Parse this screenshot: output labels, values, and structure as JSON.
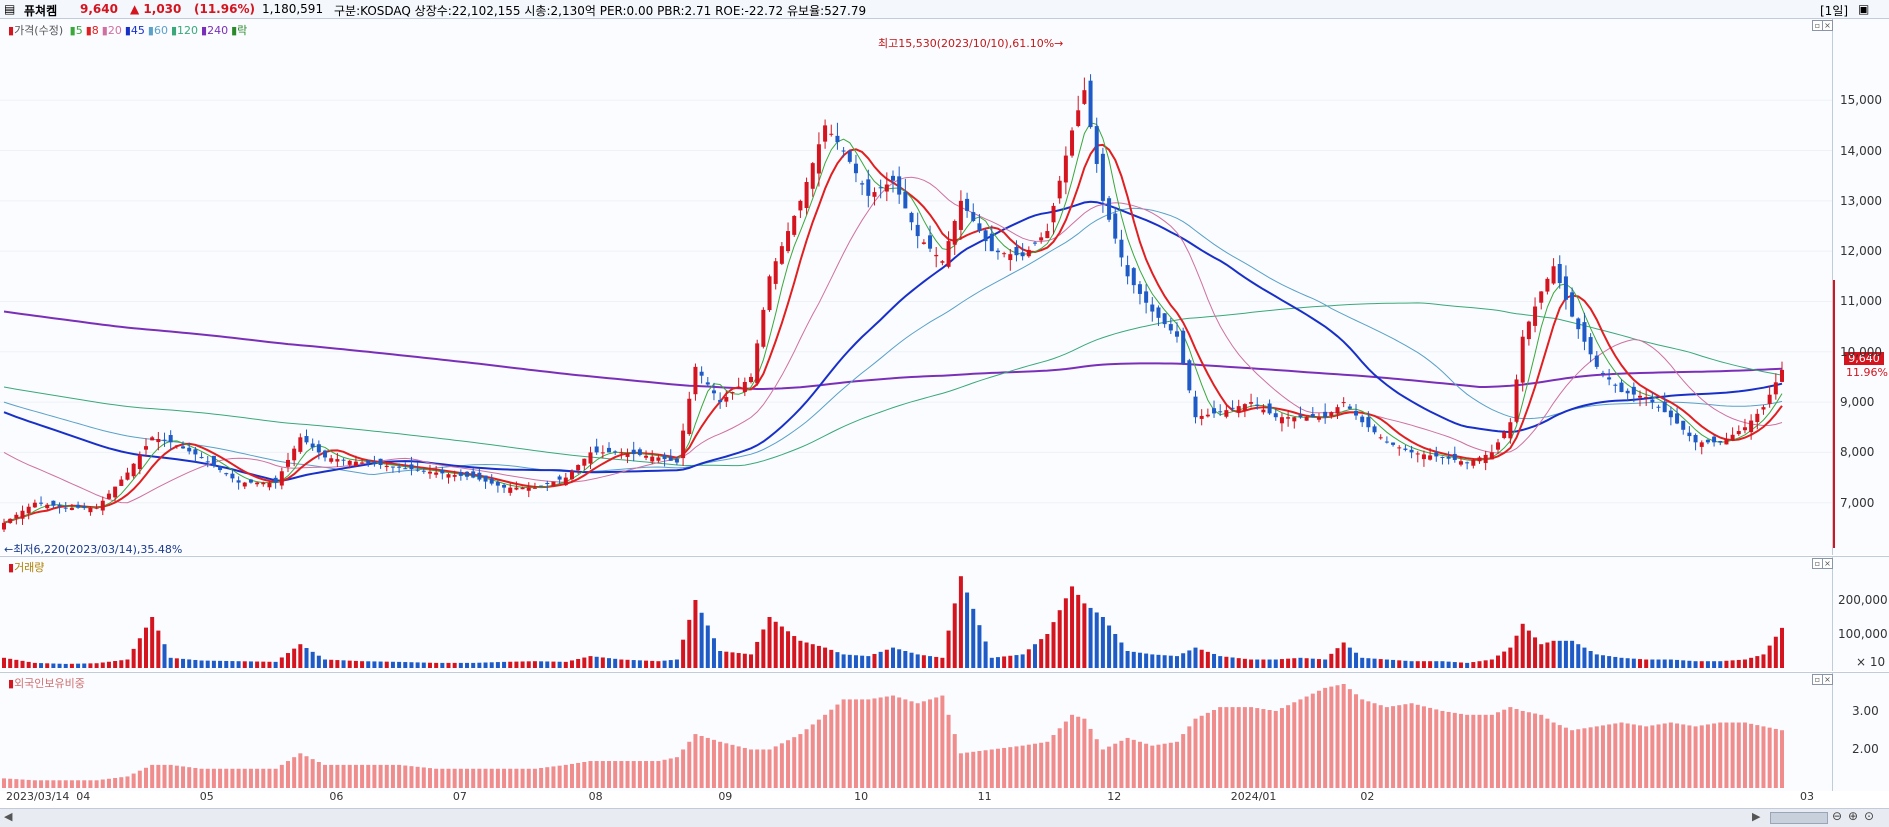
{
  "header": {
    "name": "퓨쳐켐",
    "price": "9,640",
    "change": "▲ 1,030",
    "change_pct": "(11.96%)",
    "volume": "1,180,591",
    "info": "구분:KOSDAQ 상장수:22,102,155 시총:2,130억 PER:0.00 PBR:2.71 ROE:-22.72 유보율:527.79",
    "period_button": "[1일]",
    "colors": {
      "name": "#000000",
      "price": "#d4141e",
      "change": "#d4141e"
    }
  },
  "legend": {
    "price": "가격(수정)",
    "ma": [
      {
        "label": "5",
        "color": "#3aa83a"
      },
      {
        "label": "8",
        "color": "#e02020"
      },
      {
        "label": "20",
        "color": "#d070a0"
      },
      {
        "label": "45",
        "color": "#1830c8"
      },
      {
        "label": "60",
        "color": "#5aa0c8"
      },
      {
        "label": "120",
        "color": "#3aa878"
      },
      {
        "label": "240",
        "color": "#7a2fb8"
      },
      {
        "label": "락",
        "color": "#2a8a2a"
      }
    ],
    "volume_title": "거래량",
    "foreign_title": "외국인보유비중"
  },
  "annotations": {
    "high": "최고15,530(2023/10/10),61.10%→",
    "low": "←최저6,220(2023/03/14),35.48%",
    "current_price": "9,640",
    "current_pct": "11.96%"
  },
  "price_axis": {
    "ticks": [
      "15,000",
      "14,000",
      "13,000",
      "12,000",
      "11,000",
      "10,000",
      "9,000",
      "8,000",
      "7,000"
    ]
  },
  "volume_axis": {
    "ticks": [
      "200,000",
      "100,000"
    ],
    "unit": "× 10"
  },
  "foreign_axis": {
    "ticks": [
      "3.00",
      "2.00"
    ]
  },
  "x_axis": {
    "ticks": [
      "2023/03/14",
      "04",
      "05",
      "06",
      "07",
      "08",
      "09",
      "10",
      "11",
      "12",
      "2024/01",
      "02",
      "03"
    ]
  },
  "chart_data": {
    "type": "candlestick",
    "price_range": [
      6100,
      15800
    ],
    "volume_range": [
      0,
      300000
    ],
    "foreign_range": [
      1.0,
      3.7
    ],
    "anchors": [
      {
        "i": 0,
        "p": 6600,
        "v": 30000,
        "f": 1.25
      },
      {
        "i": 5,
        "p": 7000,
        "v": 15000,
        "f": 1.2
      },
      {
        "i": 10,
        "p": 6900,
        "v": 12000,
        "f": 1.2
      },
      {
        "i": 15,
        "p": 6900,
        "v": 14000,
        "f": 1.2
      },
      {
        "i": 20,
        "p": 7600,
        "v": 25000,
        "f": 1.3
      },
      {
        "i": 24,
        "p": 8300,
        "v": 150000,
        "f": 1.6
      },
      {
        "i": 27,
        "p": 8200,
        "v": 30000,
        "f": 1.6
      },
      {
        "i": 32,
        "p": 7900,
        "v": 22000,
        "f": 1.5
      },
      {
        "i": 38,
        "p": 7400,
        "v": 20000,
        "f": 1.5
      },
      {
        "i": 44,
        "p": 7400,
        "v": 18000,
        "f": 1.5
      },
      {
        "i": 48,
        "p": 8300,
        "v": 70000,
        "f": 1.9
      },
      {
        "i": 52,
        "p": 7900,
        "v": 25000,
        "f": 1.6
      },
      {
        "i": 58,
        "p": 7800,
        "v": 20000,
        "f": 1.6
      },
      {
        "i": 64,
        "p": 7700,
        "v": 18000,
        "f": 1.6
      },
      {
        "i": 70,
        "p": 7600,
        "v": 15000,
        "f": 1.5
      },
      {
        "i": 76,
        "p": 7500,
        "v": 15000,
        "f": 1.5
      },
      {
        "i": 81,
        "p": 7300,
        "v": 18000,
        "f": 1.5
      },
      {
        "i": 86,
        "p": 7300,
        "v": 20000,
        "f": 1.5
      },
      {
        "i": 91,
        "p": 7500,
        "v": 18000,
        "f": 1.6
      },
      {
        "i": 95,
        "p": 8000,
        "v": 35000,
        "f": 1.7
      },
      {
        "i": 100,
        "p": 8000,
        "v": 25000,
        "f": 1.7
      },
      {
        "i": 106,
        "p": 7900,
        "v": 20000,
        "f": 1.7
      },
      {
        "i": 109,
        "p": 7800,
        "v": 25000,
        "f": 1.8
      },
      {
        "i": 112,
        "p": 9700,
        "v": 200000,
        "f": 2.4
      },
      {
        "i": 116,
        "p": 9000,
        "v": 50000,
        "f": 2.2
      },
      {
        "i": 121,
        "p": 9500,
        "v": 40000,
        "f": 2.0
      },
      {
        "i": 124,
        "p": 11500,
        "v": 150000,
        "f": 2.0
      },
      {
        "i": 129,
        "p": 13000,
        "v": 80000,
        "f": 2.4
      },
      {
        "i": 133,
        "p": 14500,
        "v": 60000,
        "f": 2.9
      },
      {
        "i": 136,
        "p": 14000,
        "v": 40000,
        "f": 3.3
      },
      {
        "i": 140,
        "p": 13100,
        "v": 35000,
        "f": 3.3
      },
      {
        "i": 144,
        "p": 13400,
        "v": 60000,
        "f": 3.4
      },
      {
        "i": 148,
        "p": 12300,
        "v": 40000,
        "f": 3.2
      },
      {
        "i": 152,
        "p": 11800,
        "v": 30000,
        "f": 3.4
      },
      {
        "i": 155,
        "p": 13000,
        "v": 270000,
        "f": 1.9
      },
      {
        "i": 160,
        "p": 12000,
        "v": 30000,
        "f": 2.0
      },
      {
        "i": 165,
        "p": 11900,
        "v": 40000,
        "f": 2.1
      },
      {
        "i": 169,
        "p": 12400,
        "v": 100000,
        "f": 2.2
      },
      {
        "i": 173,
        "p": 14400,
        "v": 240000,
        "f": 2.9
      },
      {
        "i": 175,
        "p": 15200,
        "v": 190000,
        "f": 2.8
      },
      {
        "i": 178,
        "p": 13000,
        "v": 150000,
        "f": 2.0
      },
      {
        "i": 182,
        "p": 11500,
        "v": 50000,
        "f": 2.3
      },
      {
        "i": 186,
        "p": 10800,
        "v": 40000,
        "f": 2.1
      },
      {
        "i": 190,
        "p": 10300,
        "v": 35000,
        "f": 2.2
      },
      {
        "i": 193,
        "p": 8700,
        "v": 60000,
        "f": 2.8
      },
      {
        "i": 197,
        "p": 8800,
        "v": 35000,
        "f": 3.1
      },
      {
        "i": 202,
        "p": 9000,
        "v": 25000,
        "f": 3.1
      },
      {
        "i": 206,
        "p": 8700,
        "v": 25000,
        "f": 3.0
      },
      {
        "i": 210,
        "p": 8700,
        "v": 30000,
        "f": 3.3
      },
      {
        "i": 214,
        "p": 8700,
        "v": 25000,
        "f": 3.6
      },
      {
        "i": 217,
        "p": 9000,
        "v": 75000,
        "f": 3.7
      },
      {
        "i": 220,
        "p": 8600,
        "v": 30000,
        "f": 3.3
      },
      {
        "i": 224,
        "p": 8200,
        "v": 25000,
        "f": 3.1
      },
      {
        "i": 228,
        "p": 8000,
        "v": 20000,
        "f": 3.2
      },
      {
        "i": 233,
        "p": 7900,
        "v": 20000,
        "f": 3.0
      },
      {
        "i": 237,
        "p": 7800,
        "v": 15000,
        "f": 2.9
      },
      {
        "i": 241,
        "p": 8000,
        "v": 25000,
        "f": 2.9
      },
      {
        "i": 244,
        "p": 8600,
        "v": 60000,
        "f": 3.1
      },
      {
        "i": 246,
        "p": 10300,
        "v": 130000,
        "f": 3.0
      },
      {
        "i": 249,
        "p": 11200,
        "v": 70000,
        "f": 2.9
      },
      {
        "i": 251,
        "p": 11700,
        "v": 80000,
        "f": 2.7
      },
      {
        "i": 254,
        "p": 10700,
        "v": 80000,
        "f": 2.5
      },
      {
        "i": 258,
        "p": 9700,
        "v": 40000,
        "f": 2.6
      },
      {
        "i": 262,
        "p": 9200,
        "v": 30000,
        "f": 2.7
      },
      {
        "i": 266,
        "p": 9100,
        "v": 25000,
        "f": 2.6
      },
      {
        "i": 270,
        "p": 8700,
        "v": 25000,
        "f": 2.7
      },
      {
        "i": 274,
        "p": 8200,
        "v": 20000,
        "f": 2.6
      },
      {
        "i": 278,
        "p": 8200,
        "v": 20000,
        "f": 2.7
      },
      {
        "i": 282,
        "p": 8500,
        "v": 25000,
        "f": 2.7
      },
      {
        "i": 285,
        "p": 8900,
        "v": 40000,
        "f": 2.6
      },
      {
        "i": 288,
        "p": 9640,
        "v": 118000,
        "f": 2.5
      }
    ]
  }
}
